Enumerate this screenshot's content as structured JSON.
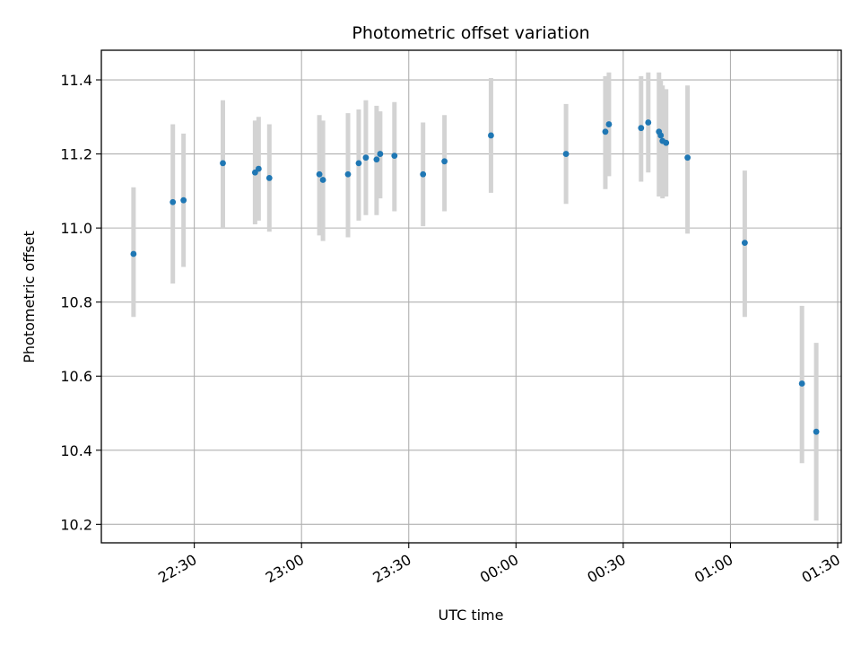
{
  "chart_data": {
    "type": "scatter",
    "title": "Photometric offset variation",
    "xlabel": "UTC time",
    "ylabel": "Photometric offset",
    "x_is_time": true,
    "x_ticks": [
      "22:30",
      "23:00",
      "23:30",
      "00:00",
      "00:30",
      "01:00",
      "01:30"
    ],
    "y_ticks": [
      "10.2",
      "10.4",
      "10.6",
      "10.8",
      "11.0",
      "11.2",
      "11.4"
    ],
    "xlim": [
      "22:04",
      "01:31"
    ],
    "ylim": [
      10.15,
      11.48
    ],
    "grid": true,
    "point_color": "#1f77b4",
    "errorbar_color": "#d3d3d3",
    "series": [
      {
        "points": [
          {
            "x": "22:13",
            "y": 10.93,
            "lo": 10.76,
            "hi": 11.11
          },
          {
            "x": "22:24",
            "y": 11.07,
            "lo": 10.85,
            "hi": 11.28
          },
          {
            "x": "22:27",
            "y": 11.075,
            "lo": 10.895,
            "hi": 11.255
          },
          {
            "x": "22:38",
            "y": 11.175,
            "lo": 11.0,
            "hi": 11.345
          },
          {
            "x": "22:47",
            "y": 11.15,
            "lo": 11.01,
            "hi": 11.29
          },
          {
            "x": "22:48",
            "y": 11.16,
            "lo": 11.02,
            "hi": 11.3
          },
          {
            "x": "22:51",
            "y": 11.135,
            "lo": 10.99,
            "hi": 11.28
          },
          {
            "x": "23:05",
            "y": 11.145,
            "lo": 10.98,
            "hi": 11.305
          },
          {
            "x": "23:06",
            "y": 11.13,
            "lo": 10.965,
            "hi": 11.29
          },
          {
            "x": "23:13",
            "y": 11.145,
            "lo": 10.975,
            "hi": 11.31
          },
          {
            "x": "23:16",
            "y": 11.175,
            "lo": 11.02,
            "hi": 11.32
          },
          {
            "x": "23:18",
            "y": 11.19,
            "lo": 11.035,
            "hi": 11.345
          },
          {
            "x": "23:21",
            "y": 11.185,
            "lo": 11.035,
            "hi": 11.33
          },
          {
            "x": "23:22",
            "y": 11.2,
            "lo": 11.08,
            "hi": 11.315
          },
          {
            "x": "23:26",
            "y": 11.195,
            "lo": 11.045,
            "hi": 11.34
          },
          {
            "x": "23:34",
            "y": 11.145,
            "lo": 11.005,
            "hi": 11.285
          },
          {
            "x": "23:40",
            "y": 11.18,
            "lo": 11.045,
            "hi": 11.305
          },
          {
            "x": "23:53",
            "y": 11.25,
            "lo": 11.095,
            "hi": 11.405
          },
          {
            "x": "00:14",
            "y": 11.2,
            "lo": 11.065,
            "hi": 11.335
          },
          {
            "x": "00:25",
            "y": 11.26,
            "lo": 11.105,
            "hi": 11.41
          },
          {
            "x": "00:26",
            "y": 11.28,
            "lo": 11.14,
            "hi": 11.42
          },
          {
            "x": "00:35",
            "y": 11.27,
            "lo": 11.125,
            "hi": 11.41
          },
          {
            "x": "00:37",
            "y": 11.285,
            "lo": 11.15,
            "hi": 11.42
          },
          {
            "x": "00:40",
            "y": 11.26,
            "lo": 11.085,
            "hi": 11.42
          },
          {
            "x": "00:40.5",
            "y": 11.25,
            "lo": 11.085,
            "hi": 11.4
          },
          {
            "x": "00:41",
            "y": 11.235,
            "lo": 11.08,
            "hi": 11.385
          },
          {
            "x": "00:42",
            "y": 11.23,
            "lo": 11.085,
            "hi": 11.375
          },
          {
            "x": "00:48",
            "y": 11.19,
            "lo": 10.985,
            "hi": 11.385
          },
          {
            "x": "01:04",
            "y": 10.96,
            "lo": 10.76,
            "hi": 11.155
          },
          {
            "x": "01:20",
            "y": 10.58,
            "lo": 10.365,
            "hi": 10.79
          },
          {
            "x": "01:24",
            "y": 10.45,
            "lo": 10.21,
            "hi": 10.69
          }
        ]
      }
    ]
  }
}
